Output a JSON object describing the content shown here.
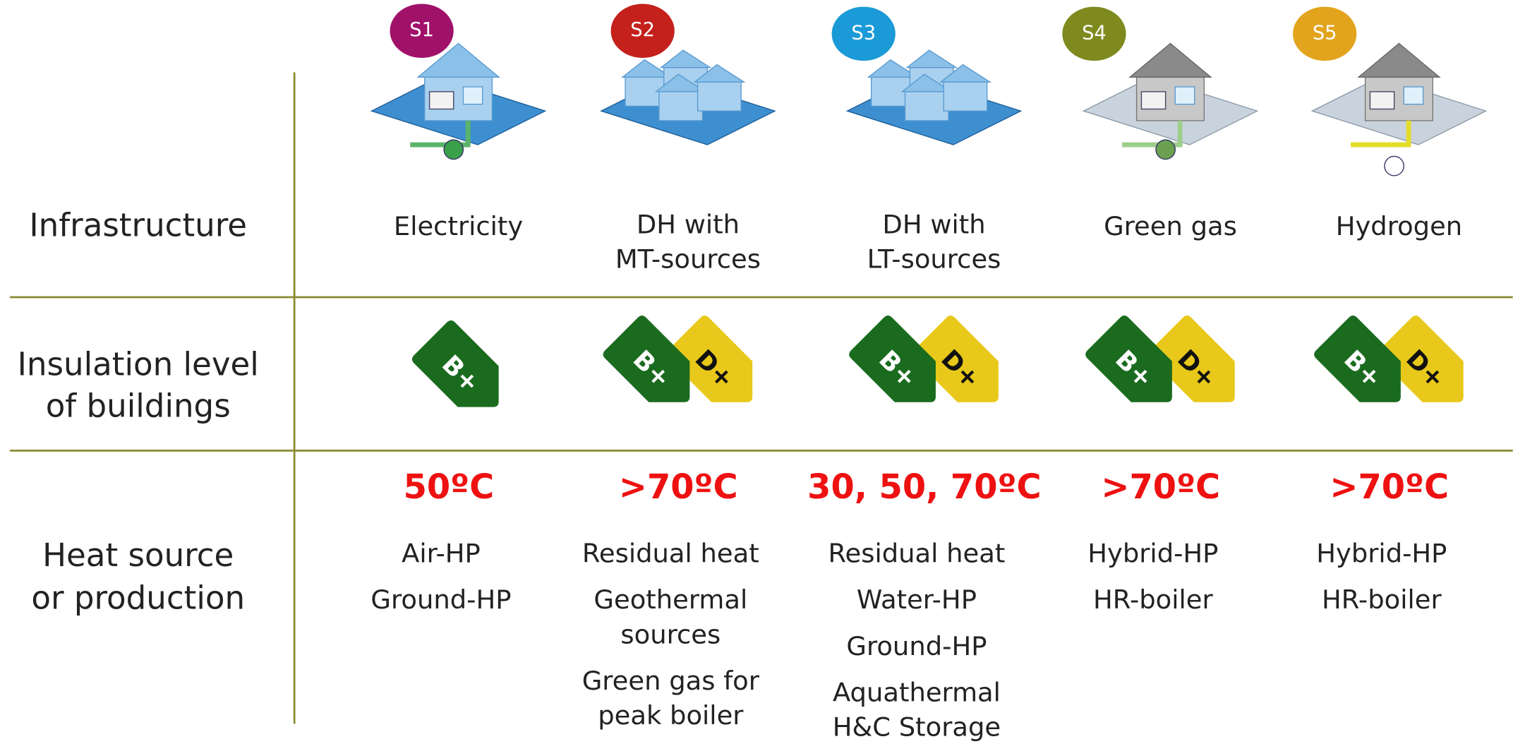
{
  "rows": [
    {
      "label": [
        "Infrastructure"
      ]
    },
    {
      "label": [
        "Insulation level",
        "of buildings"
      ]
    },
    {
      "label": [
        "Heat source",
        "or production"
      ]
    }
  ],
  "columns": [
    {
      "badge": "S1",
      "badge_color": "#a0116a",
      "infrastructure": [
        "Electricity"
      ],
      "labels": [
        "B+"
      ],
      "temperature": "50ºC",
      "heat_sources": [
        [
          "Air-HP"
        ],
        [
          "Ground-HP"
        ]
      ]
    },
    {
      "badge": "S2",
      "badge_color": "#c4201c",
      "infrastructure": [
        "DH with",
        "MT-sources"
      ],
      "labels": [
        "B+",
        "D+"
      ],
      "temperature": ">70ºC",
      "heat_sources": [
        [
          "Residual heat"
        ],
        [
          "Geothermal",
          "sources"
        ],
        [
          "Green gas for",
          "peak boiler"
        ]
      ]
    },
    {
      "badge": "S3",
      "badge_color": "#1a9ad6",
      "infrastructure": [
        "DH with",
        "LT-sources"
      ],
      "labels": [
        "B+",
        "D+"
      ],
      "temperature": "30, 50, 70ºC",
      "heat_sources": [
        [
          "Residual heat"
        ],
        [
          "Water-HP"
        ],
        [
          "Ground-HP"
        ],
        [
          "Aquathermal",
          "H&C Storage"
        ]
      ]
    },
    {
      "badge": "S4",
      "badge_color": "#7e8a1e",
      "infrastructure": [
        "Green gas"
      ],
      "labels": [
        "B+",
        "D+"
      ],
      "temperature": ">70ºC",
      "heat_sources": [
        [
          "Hybrid-HP"
        ],
        [
          "HR-boiler"
        ]
      ]
    },
    {
      "badge": "S5",
      "badge_color": "#e3a41d",
      "infrastructure": [
        "Hydrogen"
      ],
      "labels": [
        "B+",
        "D+"
      ],
      "temperature": ">70ºC",
      "heat_sources": [
        [
          "Hybrid-HP"
        ],
        [
          "HR-boiler"
        ]
      ]
    }
  ]
}
